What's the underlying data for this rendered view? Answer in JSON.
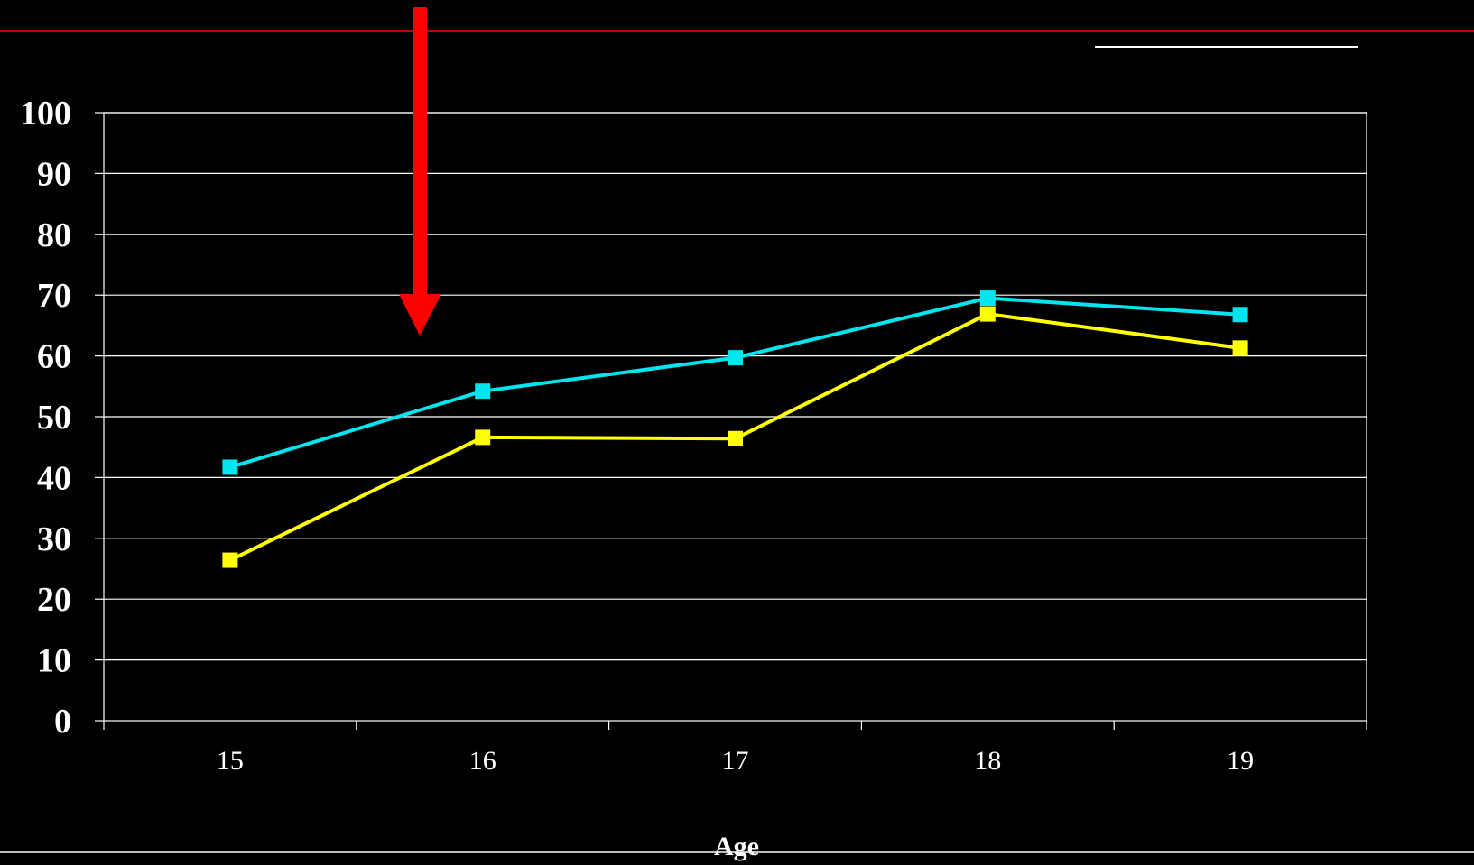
{
  "chart_data": {
    "type": "line",
    "title": "",
    "xlabel": "Age",
    "ylabel": "",
    "x": [
      "15",
      "16",
      "17",
      "18",
      "19"
    ],
    "ylim": [
      0,
      100
    ],
    "yticks": [
      0,
      10,
      20,
      30,
      40,
      50,
      60,
      70,
      80,
      90,
      100
    ],
    "grid": true,
    "legend": "none",
    "series": [
      {
        "color": "#00e5ee",
        "marker": "square",
        "values": [
          41.7,
          54.2,
          59.7,
          69.5,
          66.8
        ]
      },
      {
        "color": "#ffff00",
        "marker": "square",
        "values": [
          26.4,
          46.6,
          46.4,
          66.9,
          61.3
        ]
      }
    ]
  },
  "colors": {
    "background": "#000000",
    "gridline": "#ffffff",
    "axis": "#ffffff",
    "arrow": "#ff0000",
    "top_rule": "#c00000"
  },
  "annotation": {
    "arrow_icon": "red-down-arrow-icon"
  }
}
